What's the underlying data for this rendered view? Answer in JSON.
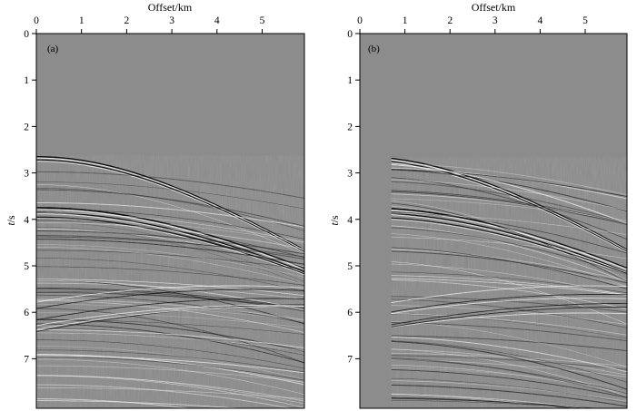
{
  "figure": {
    "x_axis_title": "Offset/km",
    "y_axis_title_var": "t",
    "y_axis_title_unit": "/s",
    "x_ticks": [
      "0",
      "1",
      "2",
      "3",
      "4",
      "5"
    ],
    "y_ticks": [
      "0",
      "1",
      "2",
      "3",
      "4",
      "5",
      "6",
      "7"
    ],
    "background_color": "#8c8c8c",
    "panels": [
      {
        "label": "(a)",
        "first_trace_offset_km": 0.0
      },
      {
        "label": "(b)",
        "first_trace_offset_km": 0.7
      }
    ]
  }
}
